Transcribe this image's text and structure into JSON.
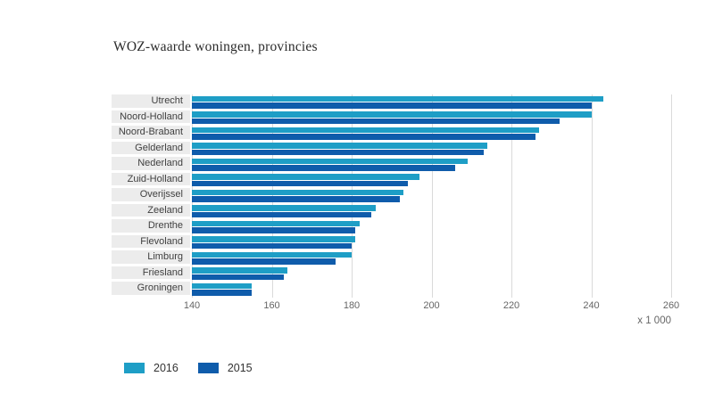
{
  "toolbar": {
    "menu_icon": "hamburger-menu-icon"
  },
  "chart_data": {
    "type": "bar",
    "orientation": "horizontal",
    "title": "WOZ-waarde woningen, provincies",
    "categories": [
      "Utrecht",
      "Noord-Holland",
      "Noord-Brabant",
      "Gelderland",
      "Nederland",
      "Zuid-Holland",
      "Overijssel",
      "Zeeland",
      "Drenthe",
      "Flevoland",
      "Limburg",
      "Friesland",
      "Groningen"
    ],
    "series": [
      {
        "name": "2016",
        "color": "#1e9ec6",
        "values": [
          243,
          240,
          227,
          214,
          209,
          197,
          193,
          186,
          182,
          181,
          180,
          164,
          155
        ]
      },
      {
        "name": "2015",
        "color": "#0f5cab",
        "values": [
          240,
          232,
          226,
          213,
          206,
          194,
          192,
          185,
          181,
          180,
          176,
          163,
          155
        ]
      }
    ],
    "unit": "x 1 000",
    "axis_note": "x 1 000",
    "xlim": [
      140,
      260
    ],
    "xticks": [
      "140",
      "160",
      "180",
      "200",
      "220",
      "240",
      "260"
    ],
    "grid": true,
    "legend_position": "bottom"
  }
}
